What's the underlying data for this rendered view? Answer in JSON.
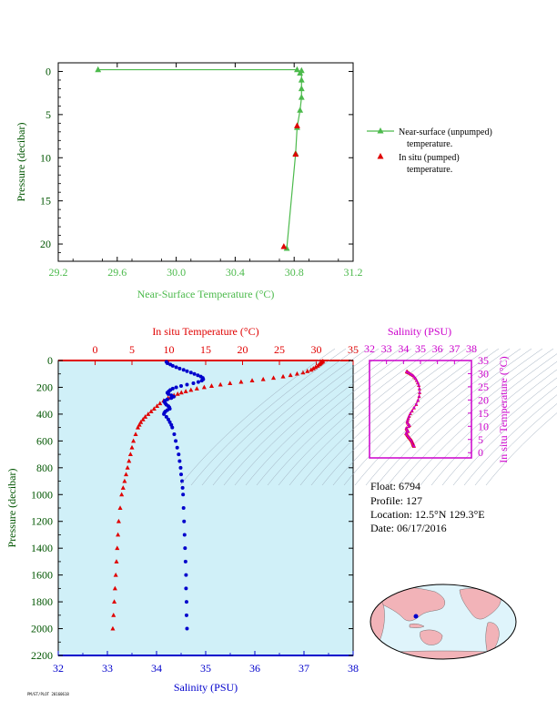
{
  "colors": {
    "green": "#4cba4c",
    "red": "#e00000",
    "blue": "#0000cc",
    "magenta": "#cc00cc",
    "dark_green": "#005500",
    "plot_bg": "#d0f0f8",
    "map_land": "#f2b3b8",
    "map_ocean": "#dff4fb"
  },
  "info": {
    "float": "Float:  6794",
    "profile": "Profile:  127",
    "location": "Location:  12.5°N  129.3°E",
    "date": "Date:  06/17/2016"
  },
  "footer": "PM/ET/PLOT 20160618",
  "chart_data": [
    {
      "type": "line",
      "name": "near-surface",
      "xlabel": "Near-Surface Temperature (°C)",
      "ylabel": "Pressure (decibar)",
      "xlim": [
        29.2,
        31.2
      ],
      "ylim": [
        22,
        -1
      ],
      "xticks": [
        29.2,
        29.6,
        30.0,
        30.4,
        30.8,
        31.2
      ],
      "xtick_labels": [
        "29.2",
        "29.6",
        "30.0",
        "30.4",
        "30.8",
        "31.2"
      ],
      "yticks": [
        0,
        5,
        10,
        15,
        20
      ],
      "ytick_labels": [
        "0",
        "5",
        "10",
        "15",
        "20"
      ],
      "series": [
        {
          "name": "Near-surface (unpumped) temperature.",
          "marker": "triangle",
          "color": "#4cba4c",
          "points": [
            [
              29.47,
              -0.2
            ],
            [
              30.82,
              -0.2
            ],
            [
              30.84,
              0.2
            ],
            [
              30.85,
              -0.1
            ],
            [
              30.85,
              1.0
            ],
            [
              30.85,
              2.0
            ],
            [
              30.85,
              3.0
            ],
            [
              30.84,
              4.5
            ],
            [
              30.82,
              6.5
            ],
            [
              30.81,
              9.5
            ],
            [
              30.75,
              20.5
            ]
          ]
        },
        {
          "name": "In situ (pumped) temperature.",
          "marker": "triangle",
          "color": "#e00000",
          "points": [
            [
              30.82,
              6.3
            ],
            [
              30.81,
              9.6
            ],
            [
              30.73,
              20.3
            ]
          ]
        }
      ],
      "legend": [
        "Near-surface (unpumped)",
        "temperature.",
        "In situ (pumped)",
        "temperature."
      ]
    },
    {
      "type": "scatter",
      "name": "profile",
      "title_top": "In situ Temperature (°C)",
      "xlabel": "Salinity (PSU)",
      "ylabel": "Pressure (decibar)",
      "temp_xlim": [
        -5,
        35
      ],
      "temp_ticks": [
        0,
        5,
        10,
        15,
        20,
        25,
        30,
        35
      ],
      "temp_tick_labels": [
        "0",
        "5",
        "10",
        "15",
        "20",
        "25",
        "30",
        "35"
      ],
      "sal_xlim": [
        32,
        38
      ],
      "sal_ticks": [
        32,
        33,
        34,
        35,
        36,
        37,
        38
      ],
      "sal_tick_labels": [
        "32",
        "33",
        "34",
        "35",
        "36",
        "37",
        "38"
      ],
      "ylim": [
        2200,
        0
      ],
      "yticks": [
        0,
        200,
        400,
        600,
        800,
        1000,
        1200,
        1400,
        1600,
        1800,
        2000,
        2200
      ],
      "ytick_labels": [
        "0",
        "200",
        "400",
        "600",
        "800",
        "1000",
        "1200",
        "1400",
        "1600",
        "1800",
        "2000",
        "2200"
      ],
      "temperature": {
        "pressure": [
          5,
          10,
          15,
          20,
          25,
          30,
          40,
          50,
          60,
          70,
          80,
          90,
          100,
          110,
          120,
          130,
          140,
          150,
          160,
          170,
          180,
          190,
          200,
          210,
          220,
          230,
          240,
          250,
          260,
          270,
          280,
          300,
          320,
          340,
          360,
          380,
          400,
          420,
          440,
          460,
          480,
          500,
          550,
          600,
          650,
          700,
          750,
          800,
          850,
          900,
          950,
          1000,
          1100,
          1200,
          1300,
          1400,
          1500,
          1600,
          1700,
          1800,
          1900,
          2000
        ],
        "values": [
          30.9,
          30.8,
          30.7,
          30.6,
          30.5,
          30.4,
          30.2,
          29.9,
          29.6,
          29.3,
          28.8,
          28.2,
          27.4,
          26.5,
          25.5,
          24.2,
          22.8,
          21.3,
          19.8,
          18.3,
          17.0,
          15.8,
          14.8,
          13.8,
          13.0,
          12.3,
          11.7,
          11.2,
          10.7,
          10.3,
          9.9,
          9.3,
          8.8,
          8.4,
          8.0,
          7.6,
          7.2,
          6.8,
          6.5,
          6.2,
          6.0,
          5.8,
          5.5,
          5.2,
          5.0,
          4.8,
          4.6,
          4.4,
          4.2,
          4.0,
          3.8,
          3.6,
          3.4,
          3.2,
          3.1,
          3.0,
          2.9,
          2.8,
          2.7,
          2.6,
          2.5,
          2.4
        ]
      },
      "salinity": {
        "pressure": [
          10,
          20,
          30,
          40,
          50,
          60,
          70,
          80,
          90,
          100,
          110,
          120,
          130,
          140,
          150,
          160,
          170,
          180,
          190,
          200,
          210,
          220,
          230,
          240,
          250,
          260,
          270,
          280,
          290,
          300,
          310,
          320,
          330,
          340,
          350,
          360,
          370,
          380,
          390,
          400,
          420,
          440,
          460,
          480,
          500,
          550,
          600,
          650,
          700,
          750,
          800,
          850,
          900,
          950,
          1000,
          1100,
          1200,
          1300,
          1400,
          1500,
          1600,
          1700,
          1800,
          1900,
          2000
        ],
        "values": [
          34.2,
          34.22,
          34.28,
          34.33,
          34.4,
          34.47,
          34.55,
          34.62,
          34.7,
          34.77,
          34.84,
          34.9,
          34.94,
          34.95,
          34.92,
          34.85,
          34.75,
          34.62,
          34.5,
          34.4,
          34.33,
          34.28,
          34.25,
          34.22,
          34.24,
          34.3,
          34.35,
          34.3,
          34.22,
          34.17,
          34.16,
          34.18,
          34.2,
          34.24,
          34.26,
          34.27,
          34.22,
          34.18,
          34.16,
          34.15,
          34.2,
          34.24,
          34.27,
          34.3,
          34.32,
          34.36,
          34.39,
          34.42,
          34.45,
          34.47,
          34.49,
          34.5,
          34.52,
          34.53,
          34.54,
          34.55,
          34.56,
          34.57,
          34.58,
          34.59,
          34.6,
          34.6,
          34.61,
          34.61,
          34.62
        ]
      }
    },
    {
      "type": "scatter",
      "name": "ts-diagram",
      "title": "Salinity (PSU)",
      "ylabel": "In situ Temperature (°C)",
      "xlim": [
        32,
        38
      ],
      "ylim": [
        -2,
        35
      ],
      "xticks": [
        32,
        33,
        34,
        35,
        36,
        37,
        38
      ],
      "xtick_labels": [
        "32",
        "33",
        "34",
        "35",
        "36",
        "37",
        "38"
      ],
      "yticks": [
        0,
        5,
        10,
        15,
        20,
        25,
        30,
        35
      ],
      "ytick_labels": [
        "0",
        "5",
        "10",
        "15",
        "20",
        "25",
        "30",
        "35"
      ]
    }
  ]
}
